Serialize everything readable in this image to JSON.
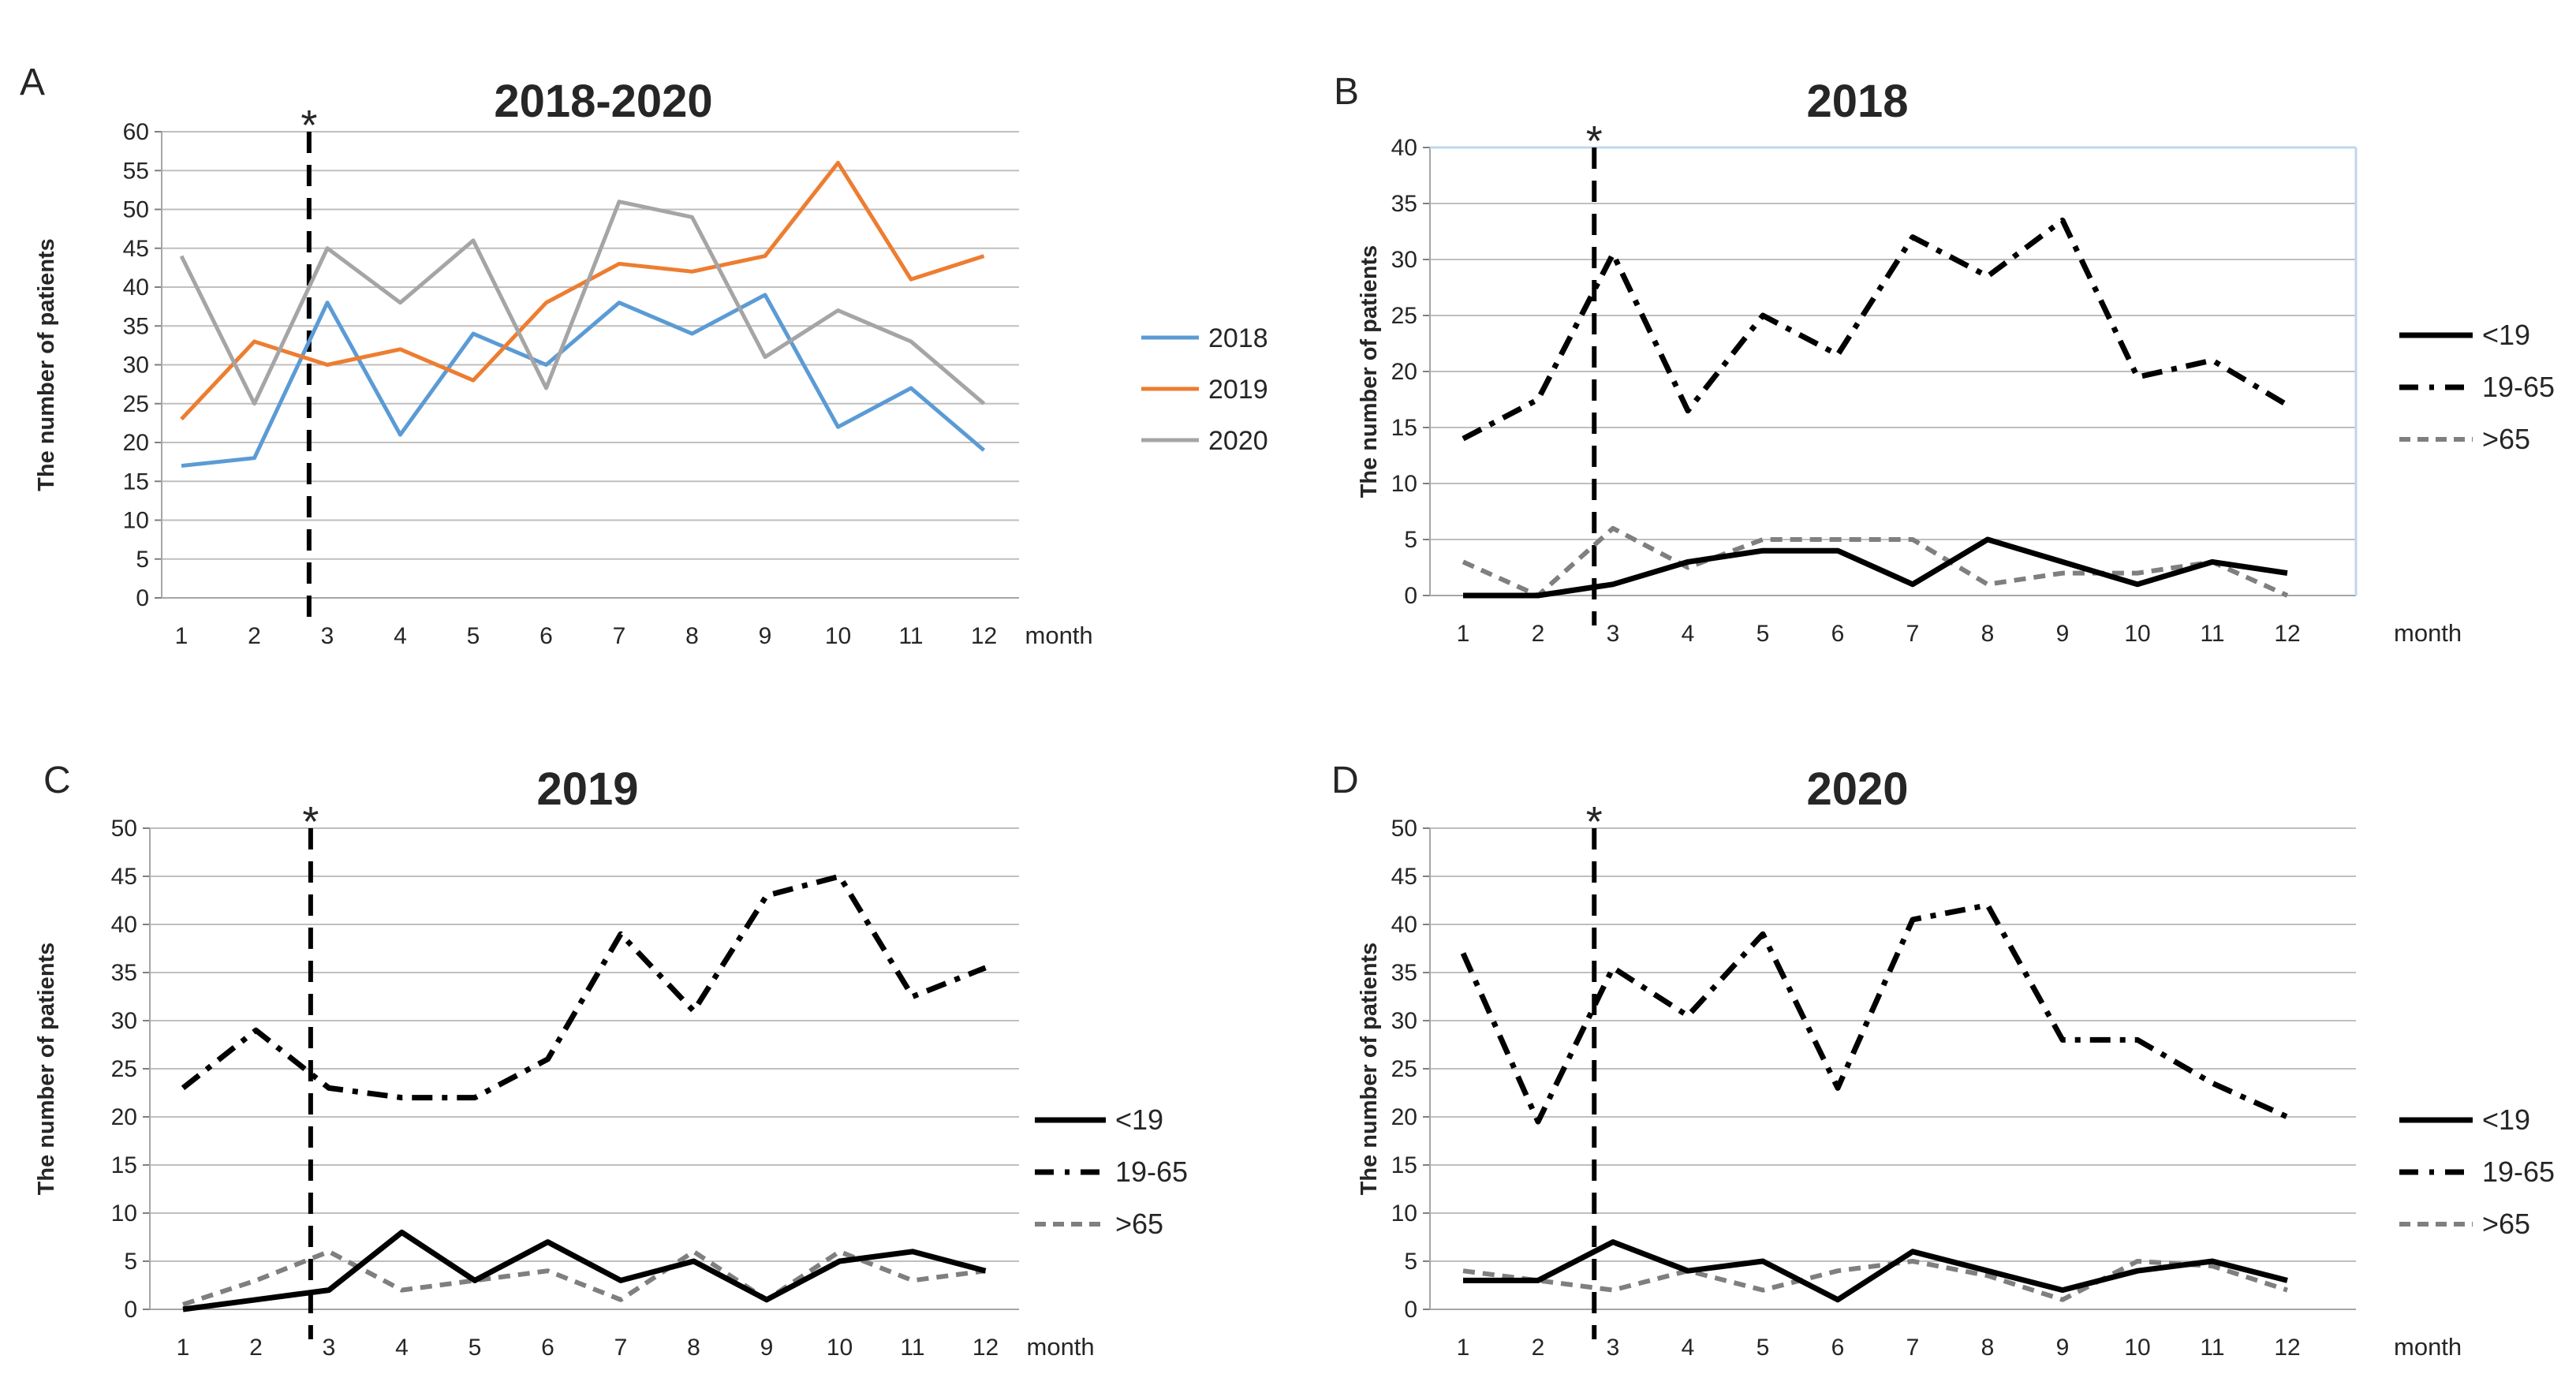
{
  "figure": {
    "background": "#ffffff",
    "x_axis_unit": "month",
    "y_axis_label": "The number of patients",
    "significance_marker": "*",
    "significance_vline_month": 2.75
  },
  "chart_data": [
    {
      "panel_letter": "A",
      "title": "2018-2020",
      "type": "line",
      "x": [
        1,
        2,
        3,
        4,
        5,
        6,
        7,
        8,
        9,
        10,
        11,
        12
      ],
      "xlabel": "month",
      "ylabel": "The number of patients",
      "ylim": [
        0,
        60
      ],
      "ystep": 5,
      "grid": true,
      "legend_position": "right",
      "annotations": [
        {
          "type": "vline",
          "x": 2.75,
          "label": "*"
        }
      ],
      "series": [
        {
          "name": "2018",
          "color": "#5B9BD5",
          "line_style": "solid",
          "values": [
            17,
            18,
            38,
            21,
            34,
            30,
            38,
            34,
            39,
            22,
            27,
            19
          ]
        },
        {
          "name": "2019",
          "color": "#ED7D31",
          "line_style": "solid",
          "values": [
            23,
            33,
            30,
            32,
            28,
            38,
            43,
            42,
            44,
            56,
            41,
            44
          ]
        },
        {
          "name": "2020",
          "color": "#A5A5A5",
          "line_style": "solid",
          "values": [
            44,
            25,
            45,
            38,
            46,
            27,
            51,
            49,
            31,
            37,
            33,
            25
          ]
        }
      ]
    },
    {
      "panel_letter": "B",
      "title": "2018",
      "type": "line",
      "x": [
        1,
        2,
        3,
        4,
        5,
        6,
        7,
        8,
        9,
        10,
        11,
        12
      ],
      "xlabel": "month",
      "ylabel": "The number of patients",
      "ylim": [
        0,
        40
      ],
      "ystep": 5,
      "grid": true,
      "legend_position": "right",
      "annotations": [
        {
          "type": "vline",
          "x": 2.75,
          "label": "*"
        }
      ],
      "series": [
        {
          "name": "<19",
          "color": "#000000",
          "line_style": "solid",
          "values": [
            0,
            0,
            1,
            3,
            4,
            4,
            1,
            5,
            3,
            1,
            3,
            2
          ]
        },
        {
          "name": "19-65",
          "color": "#000000",
          "line_style": "dashdot",
          "values": [
            14,
            17.5,
            30.5,
            16.5,
            25,
            21.5,
            32,
            28.5,
            33.5,
            19.5,
            21,
            17
          ]
        },
        {
          "name": ">65",
          "color": "#7F7F7F",
          "line_style": "dashed",
          "values": [
            3,
            0,
            6,
            2.5,
            5,
            5,
            5,
            1,
            2,
            2,
            3,
            0
          ]
        }
      ]
    },
    {
      "panel_letter": "C",
      "title": "2019",
      "type": "line",
      "x": [
        1,
        2,
        3,
        4,
        5,
        6,
        7,
        8,
        9,
        10,
        11,
        12
      ],
      "xlabel": "month",
      "ylabel": "The number of patients",
      "ylim": [
        0,
        50
      ],
      "ystep": 5,
      "grid": true,
      "legend_position": "right",
      "annotations": [
        {
          "type": "vline",
          "x": 2.75,
          "label": "*"
        }
      ],
      "series": [
        {
          "name": "<19",
          "color": "#000000",
          "line_style": "solid",
          "values": [
            0,
            1,
            2,
            8,
            3,
            7,
            3,
            5,
            1,
            5,
            6,
            4
          ]
        },
        {
          "name": "19-65",
          "color": "#000000",
          "line_style": "dashdot",
          "values": [
            23,
            29,
            23,
            22,
            22,
            26,
            39,
            31,
            43,
            45,
            32.5,
            35.5
          ]
        },
        {
          "name": ">65",
          "color": "#7F7F7F",
          "line_style": "dashed",
          "values": [
            0.5,
            3,
            6,
            2,
            3,
            4,
            1,
            6,
            1,
            6,
            3,
            4
          ]
        }
      ]
    },
    {
      "panel_letter": "D",
      "title": "2020",
      "type": "line",
      "x": [
        1,
        2,
        3,
        4,
        5,
        6,
        7,
        8,
        9,
        10,
        11,
        12
      ],
      "xlabel": "month",
      "ylabel": "The number of patients",
      "ylim": [
        0,
        50
      ],
      "ystep": 5,
      "grid": true,
      "legend_position": "right",
      "annotations": [
        {
          "type": "vline",
          "x": 2.75,
          "label": "*"
        }
      ],
      "series": [
        {
          "name": "<19",
          "color": "#000000",
          "line_style": "solid",
          "values": [
            3,
            3,
            7,
            4,
            5,
            1,
            6,
            4,
            2,
            4,
            5,
            3
          ]
        },
        {
          "name": "19-65",
          "color": "#000000",
          "line_style": "dashdot",
          "values": [
            37,
            19.5,
            35.5,
            30.5,
            39,
            23,
            40.5,
            42,
            28,
            28,
            23.5,
            20
          ]
        },
        {
          "name": ">65",
          "color": "#7F7F7F",
          "line_style": "dashed",
          "values": [
            4,
            3,
            2,
            4,
            2,
            4,
            5,
            3.5,
            1,
            5,
            4.5,
            2
          ]
        }
      ]
    }
  ]
}
